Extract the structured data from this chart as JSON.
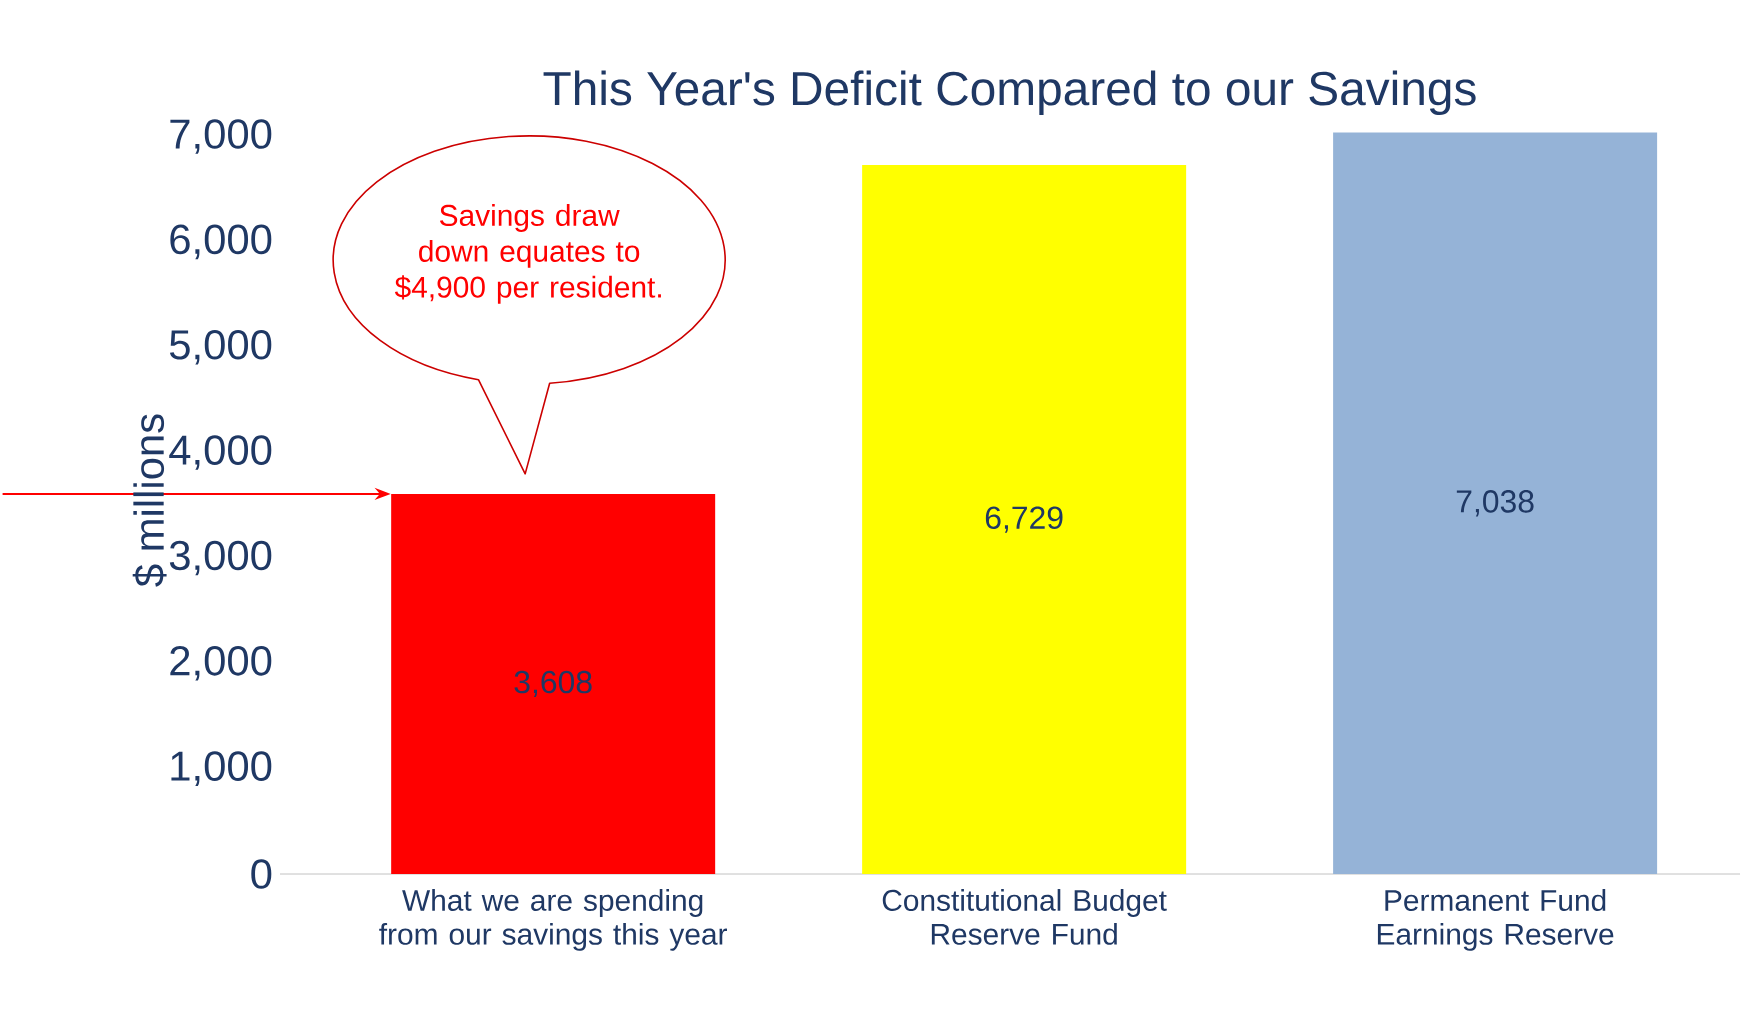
{
  "chart_data": {
    "type": "bar",
    "title": "This Year's Deficit Compared to our Savings",
    "ylabel": "$ millions",
    "categories": [
      "What we are spending from our savings this year",
      "Constitutional Budget Reserve Fund",
      "Permanent Fund Earnings Reserve"
    ],
    "values": [
      3608,
      6729,
      7038
    ],
    "colors": [
      "#ff0000",
      "#ffff00",
      "#95b3d7"
    ],
    "value_labels": [
      "3,608",
      "6,729",
      "7,038"
    ],
    "ylim": [
      0,
      7100
    ],
    "yticks": [
      0,
      {
        "value": 1000,
        "label": "1,000"
      },
      {
        "value": 2000,
        "label": "2,000"
      },
      {
        "value": 3000,
        "label": "3,000"
      },
      {
        "value": 4000,
        "label": "4,000"
      },
      {
        "value": 5000,
        "label": "5,000"
      },
      {
        "value": 6000,
        "label": "6,000"
      },
      {
        "value": 7000,
        "label": "7,000"
      }
    ],
    "annotations": [
      "Savings draw down equates to $4,900 per resident."
    ],
    "grid": false,
    "legend": false
  }
}
